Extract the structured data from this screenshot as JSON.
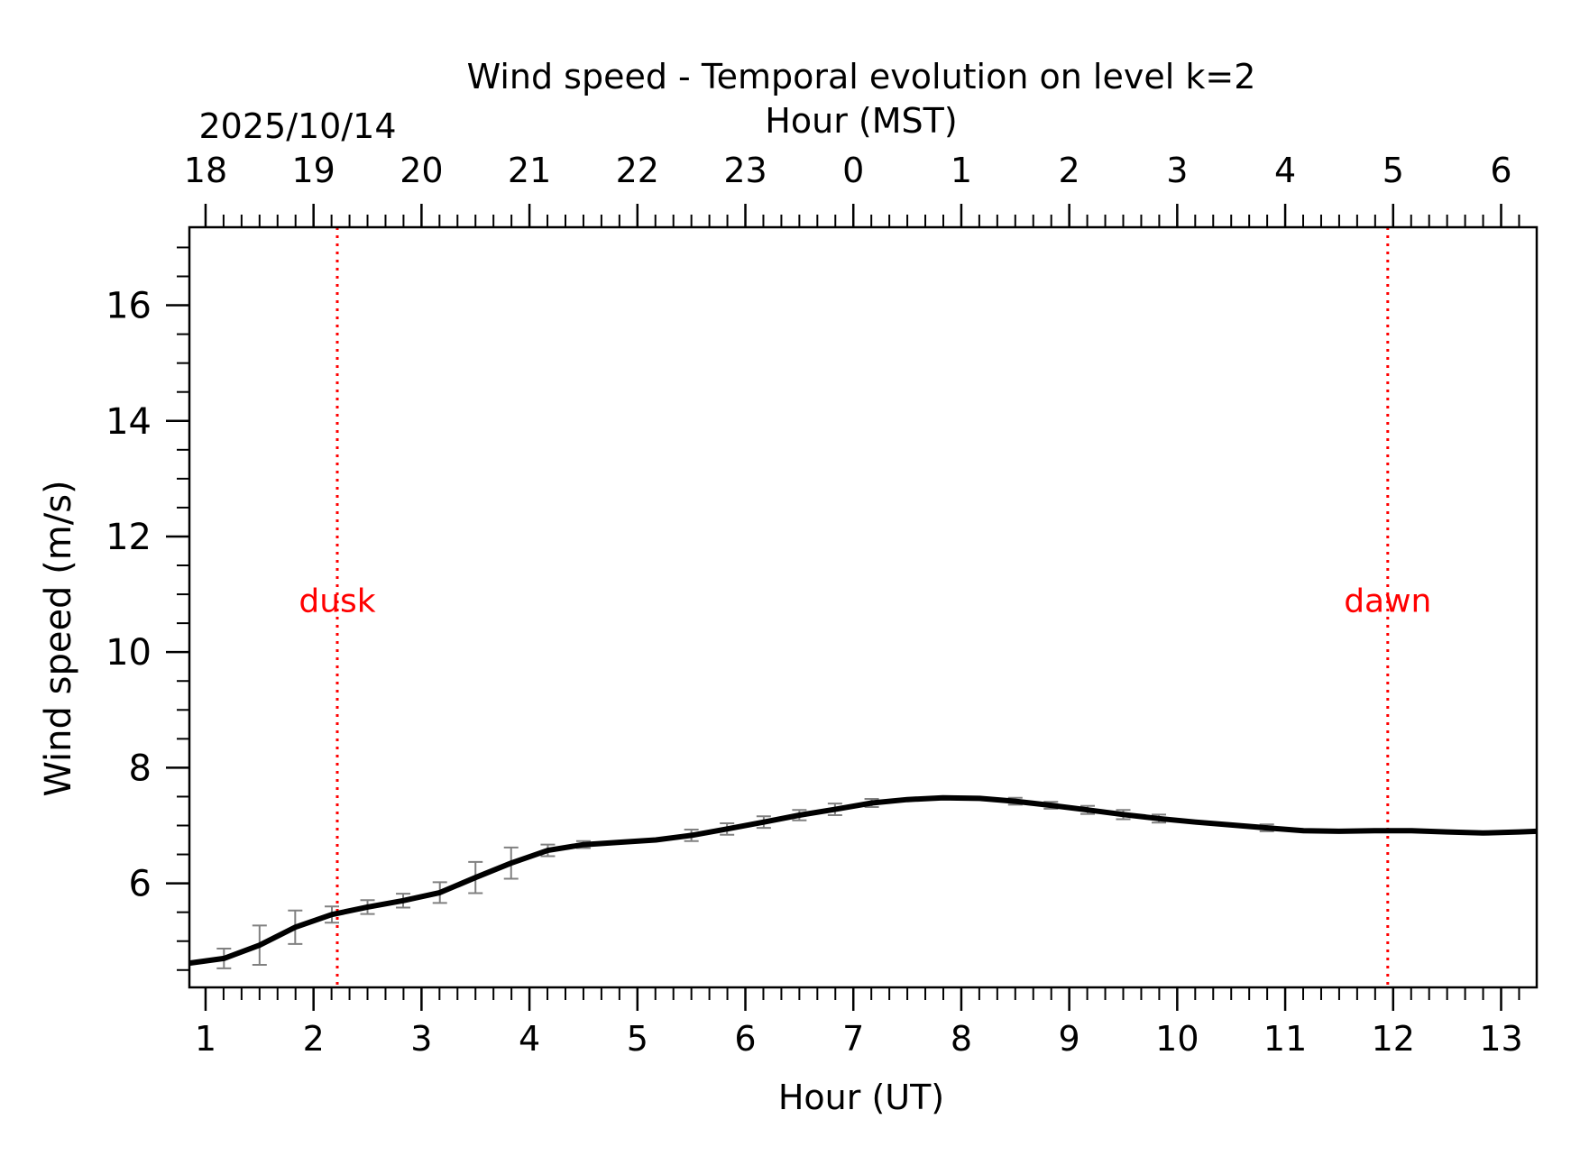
{
  "chart_data": {
    "type": "line",
    "title": "Wind speed - Temporal evolution on level k=2",
    "date_label": "2025/10/14",
    "xlabel": "Hour (UT)",
    "xlabel_top": "Hour (MST)",
    "ylabel": "Wind speed (m/s)",
    "xlim": [
      0.85,
      13.33
    ],
    "ylim": [
      4.2,
      17.35
    ],
    "x_ticks": [
      1,
      2,
      3,
      4,
      5,
      6,
      7,
      8,
      9,
      10,
      11,
      12,
      13
    ],
    "x_tick_labels": [
      "1",
      "2",
      "3",
      "4",
      "5",
      "6",
      "7",
      "8",
      "9",
      "10",
      "11",
      "12",
      "13"
    ],
    "top_tick_labels": [
      "18",
      "19",
      "20",
      "21",
      "22",
      "23",
      "0",
      "1",
      "2",
      "3",
      "4",
      "5",
      "6"
    ],
    "y_ticks": [
      6,
      8,
      10,
      12,
      14,
      16
    ],
    "y_tick_labels": [
      "6",
      "8",
      "10",
      "12",
      "14",
      "16"
    ],
    "series": [
      {
        "name": "Wind speed",
        "color": "#000000",
        "x": [
          0.85,
          1.17,
          1.5,
          1.83,
          2.17,
          2.5,
          2.83,
          3.17,
          3.5,
          3.83,
          4.17,
          4.5,
          4.83,
          5.17,
          5.5,
          5.83,
          6.17,
          6.5,
          6.83,
          7.17,
          7.5,
          7.83,
          8.17,
          8.5,
          8.83,
          9.17,
          9.5,
          9.83,
          10.17,
          10.5,
          10.83,
          11.17,
          11.5,
          11.83,
          12.17,
          12.5,
          12.83,
          13.17,
          13.33
        ],
        "y": [
          4.62,
          4.7,
          4.93,
          5.24,
          5.46,
          5.59,
          5.7,
          5.84,
          6.1,
          6.35,
          6.57,
          6.67,
          6.71,
          6.75,
          6.83,
          6.94,
          7.06,
          7.18,
          7.28,
          7.39,
          7.45,
          7.48,
          7.47,
          7.42,
          7.35,
          7.27,
          7.19,
          7.12,
          7.06,
          7.01,
          6.96,
          6.91,
          6.9,
          6.91,
          6.91,
          6.89,
          6.87,
          6.89,
          6.9
        ]
      }
    ],
    "error_bars": {
      "color": "#808080",
      "x": [
        1.17,
        1.5,
        1.83,
        2.17,
        2.5,
        2.83,
        3.17,
        3.5,
        3.83,
        4.17,
        4.5,
        5.5,
        5.83,
        6.17,
        6.5,
        6.83,
        7.17,
        8.5,
        8.83,
        9.17,
        9.5,
        9.83,
        10.83
      ],
      "center": [
        4.7,
        4.93,
        5.24,
        5.46,
        5.59,
        5.7,
        5.84,
        6.1,
        6.35,
        6.57,
        6.67,
        6.83,
        6.94,
        7.06,
        7.18,
        7.28,
        7.39,
        7.42,
        7.35,
        7.27,
        7.19,
        7.12,
        6.96
      ],
      "err": [
        0.17,
        0.34,
        0.29,
        0.14,
        0.12,
        0.12,
        0.18,
        0.27,
        0.27,
        0.1,
        0.06,
        0.1,
        0.1,
        0.1,
        0.09,
        0.1,
        0.07,
        0.06,
        0.06,
        0.07,
        0.08,
        0.07,
        0.06
      ]
    },
    "markers": [
      {
        "label": "dusk",
        "x": 2.22,
        "label_y": 10.7,
        "color": "#ff0000"
      },
      {
        "label": "dawn",
        "x": 11.95,
        "label_y": 10.7,
        "color": "#ff0000"
      }
    ],
    "grid": false
  }
}
